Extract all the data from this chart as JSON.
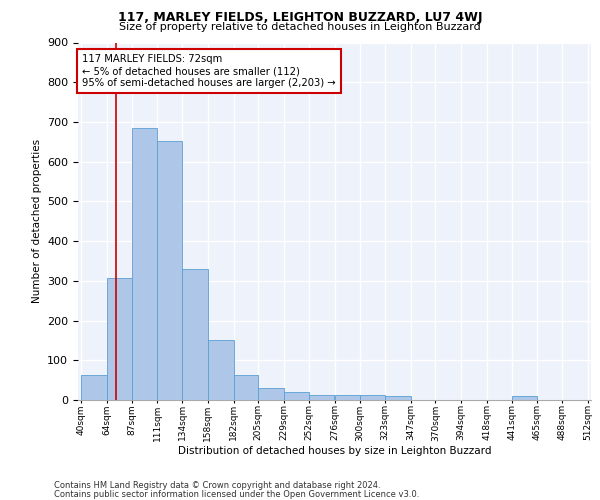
{
  "title": "117, MARLEY FIELDS, LEIGHTON BUZZARD, LU7 4WJ",
  "subtitle": "Size of property relative to detached houses in Leighton Buzzard",
  "xlabel": "Distribution of detached houses by size in Leighton Buzzard",
  "ylabel": "Number of detached properties",
  "bar_edges": [
    40,
    64,
    87,
    111,
    134,
    158,
    182,
    205,
    229,
    252,
    276,
    300,
    323,
    347,
    370,
    394,
    418,
    441,
    465,
    488,
    512
  ],
  "bar_heights": [
    62,
    308,
    686,
    652,
    330,
    152,
    62,
    30,
    20,
    12,
    12,
    12,
    10,
    0,
    0,
    0,
    0,
    10,
    0,
    0
  ],
  "bar_color": "#aec6e8",
  "bar_edgecolor": "#5a9fd4",
  "property_value": 72,
  "vline_color": "#cc0000",
  "annotation_text": "117 MARLEY FIELDS: 72sqm\n← 5% of detached houses are smaller (112)\n95% of semi-detached houses are larger (2,203) →",
  "annotation_box_color": "#ffffff",
  "annotation_box_edgecolor": "#cc0000",
  "footnote1": "Contains HM Land Registry data © Crown copyright and database right 2024.",
  "footnote2": "Contains public sector information licensed under the Open Government Licence v3.0.",
  "ylim": [
    0,
    900
  ],
  "background_color": "#eef2fb",
  "grid_color": "#ffffff"
}
